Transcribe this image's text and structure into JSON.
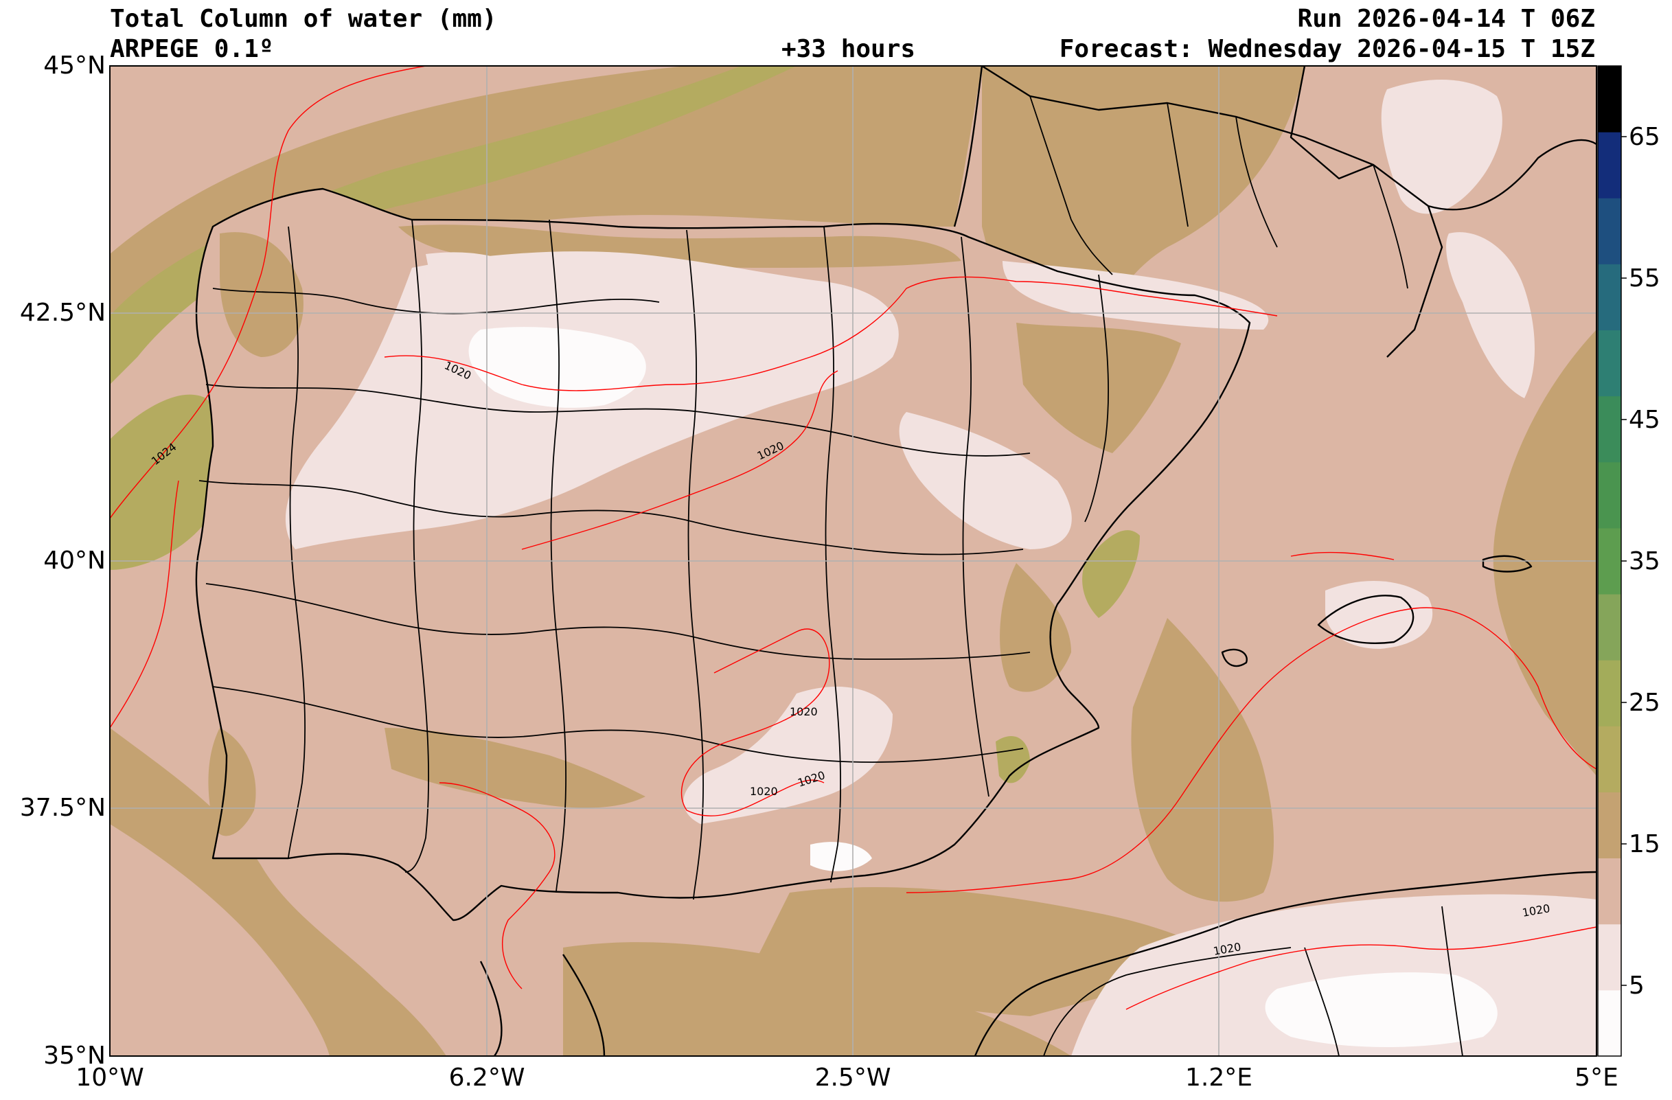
{
  "header": {
    "title": "Total Column of water (mm)",
    "model": "ARPEGE 0.1º",
    "lead_time": "+33 hours",
    "run": "Run 2026-04-14 T 06Z",
    "forecast": "Forecast: Wednesday 2026-04-15 T 15Z"
  },
  "map": {
    "extent": {
      "lon": [
        -10,
        5
      ],
      "lat": [
        35,
        45
      ]
    },
    "lon_ticks": [
      "10°W",
      "6.2°W",
      "2.5°W",
      "1.2°E",
      "5°E"
    ],
    "lat_ticks": [
      "45°N",
      "42.5°N",
      "40°N",
      "37.5°N",
      "35°N"
    ],
    "isobar_labels": [
      "1024",
      "1020",
      "1020",
      "1020",
      "1020",
      "1020",
      "1020",
      "1020"
    ],
    "isobar_color": "#ff0000",
    "gridlines": true
  },
  "colorbar": {
    "tick_labels": [
      "65",
      "55",
      "45",
      "35",
      "25",
      "15",
      "5"
    ],
    "levels": [
      0,
      5,
      10,
      15,
      20,
      25,
      30,
      35,
      40,
      45,
      50,
      55,
      60,
      65,
      70
    ],
    "colors": [
      "#fdfbfb",
      "#f2e2e0",
      "#dcb6a4",
      "#c4a272",
      "#b4ab60",
      "#a3ac5a",
      "#85a55a",
      "#5d9d4f",
      "#4a944f",
      "#3b8c5a",
      "#2e7f73",
      "#266b7d",
      "#1e4f7f",
      "#132d7a",
      "#000000"
    ]
  },
  "fills": {
    "sea_base": "#dcb6a4",
    "tan": "#c4a272",
    "olive": "#b4ab60",
    "pale": "#f2e2e0",
    "white": "#fdfbfb"
  }
}
